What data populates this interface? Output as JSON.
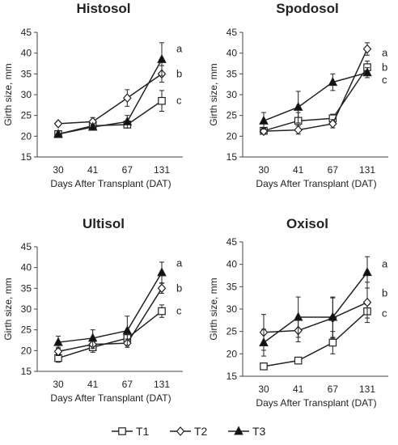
{
  "chart_data": [
    {
      "type": "line",
      "title": "Histosol",
      "xlabel": "Days After Transplant (DAT)",
      "ylabel": "Girth size, mm",
      "categories": [
        "30",
        "41",
        "67",
        "131"
      ],
      "ylim": [
        15,
        45
      ],
      "yticks": [
        15,
        20,
        25,
        30,
        35,
        40,
        45
      ],
      "series": [
        {
          "name": "T1",
          "values": [
            20.5,
            22.5,
            22.8,
            28.5
          ],
          "errors": [
            0.8,
            0.5,
            0.8,
            2.5
          ],
          "marker": "square"
        },
        {
          "name": "T2",
          "values": [
            23.0,
            23.5,
            29.2,
            35.0
          ],
          "errors": [
            0.5,
            1.0,
            2.0,
            2.0
          ],
          "marker": "diamond"
        },
        {
          "name": "T3",
          "values": [
            20.5,
            22.2,
            23.5,
            38.5
          ],
          "errors": [
            0.8,
            0.5,
            1.5,
            4.0
          ],
          "marker": "triangle"
        }
      ],
      "sig_letters": [
        "a",
        "b",
        "c"
      ]
    },
    {
      "type": "line",
      "title": "Spodosol",
      "xlabel": "Days After Transplant (DAT)",
      "ylabel": "Girth size, mm",
      "categories": [
        "30",
        "41",
        "67",
        "131"
      ],
      "ylim": [
        15,
        45
      ],
      "yticks": [
        15,
        20,
        25,
        30,
        35,
        40,
        45
      ],
      "series": [
        {
          "name": "T1",
          "values": [
            21.3,
            23.7,
            24.3,
            36.6
          ],
          "errors": [
            0.7,
            2.0,
            1.0,
            1.5
          ],
          "marker": "square"
        },
        {
          "name": "T2",
          "values": [
            21.2,
            21.5,
            23.0,
            41.0
          ],
          "errors": [
            0.7,
            1.0,
            1.0,
            1.5
          ],
          "marker": "diamond"
        },
        {
          "name": "T3",
          "values": [
            23.7,
            27.0,
            33.0,
            35.3
          ],
          "errors": [
            2.0,
            3.8,
            2.0,
            1.2
          ],
          "marker": "triangle"
        }
      ],
      "sig_letters": [
        "a",
        "b",
        "c"
      ]
    },
    {
      "type": "line",
      "title": "Ultisol",
      "xlabel": "Days After Transplant (DAT)",
      "ylabel": "Girth size, mm",
      "categories": [
        "30",
        "41",
        "67",
        "131"
      ],
      "ylim": [
        15,
        45
      ],
      "yticks": [
        15,
        20,
        25,
        30,
        35,
        40,
        45
      ],
      "series": [
        {
          "name": "T1",
          "values": [
            18.2,
            20.8,
            23.0,
            29.5
          ],
          "errors": [
            1.0,
            1.2,
            1.5,
            1.5
          ],
          "marker": "square"
        },
        {
          "name": "T2",
          "values": [
            19.8,
            21.5,
            21.8,
            35.0
          ],
          "errors": [
            1.0,
            1.0,
            1.0,
            1.2
          ],
          "marker": "diamond"
        },
        {
          "name": "T3",
          "values": [
            22.0,
            23.0,
            24.8,
            38.8
          ],
          "errors": [
            1.5,
            2.0,
            3.5,
            2.5
          ],
          "marker": "triangle"
        }
      ],
      "sig_letters": [
        "a",
        "b",
        "c"
      ]
    },
    {
      "type": "line",
      "title": "Oxisol",
      "xlabel": "Days After Transplant (DAT)",
      "ylabel": "Girth size, mm",
      "categories": [
        "30",
        "41",
        "67",
        "131"
      ],
      "ylim": [
        15,
        45
      ],
      "yticks": [
        15,
        20,
        25,
        30,
        35,
        40,
        45
      ],
      "series": [
        {
          "name": "T1",
          "values": [
            17.2,
            18.5,
            22.5,
            29.5
          ],
          "errors": [
            0.5,
            0.5,
            2.5,
            1.5
          ],
          "marker": "square"
        },
        {
          "name": "T2",
          "values": [
            24.8,
            25.2,
            28.0,
            31.5
          ],
          "errors": [
            4.0,
            2.5,
            4.5,
            4.5
          ],
          "marker": "diamond"
        },
        {
          "name": "T3",
          "values": [
            22.5,
            28.2,
            28.2,
            38.2
          ],
          "errors": [
            3.0,
            4.5,
            4.5,
            3.5
          ],
          "marker": "triangle"
        }
      ],
      "sig_letters": [
        "a",
        "b",
        "c"
      ]
    }
  ],
  "legend": {
    "placement": "bottom-center",
    "items": [
      {
        "label": "T1",
        "marker": "square"
      },
      {
        "label": "T2",
        "marker": "diamond"
      },
      {
        "label": "T3",
        "marker": "triangle"
      }
    ]
  },
  "colors": {
    "line": "#222222",
    "open_fill": "#ffffff",
    "solid_fill": "#111111"
  }
}
